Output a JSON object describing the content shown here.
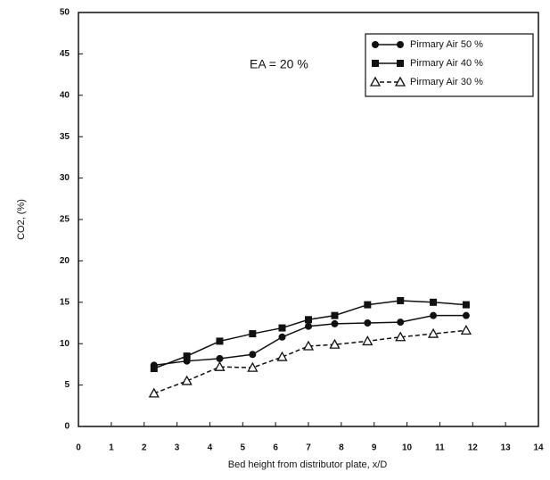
{
  "chart_data": {
    "type": "line",
    "x_label": "Bed height from distributor plate, x/D",
    "y_label": "CO2, (%)",
    "annotation": "EA = 20 %",
    "xlim": [
      0,
      14
    ],
    "ylim": [
      0,
      50
    ],
    "xticks": [
      0,
      1,
      2,
      3,
      4,
      5,
      6,
      7,
      8,
      9,
      10,
      11,
      12,
      13,
      14
    ],
    "yticks": [
      0,
      5,
      10,
      15,
      20,
      25,
      30,
      35,
      40,
      45,
      50
    ],
    "legend_position": "upper right",
    "x": [
      2.3,
      3.3,
      4.3,
      5.3,
      6.2,
      7.0,
      7.8,
      8.8,
      9.8,
      10.8,
      11.8
    ],
    "series": [
      {
        "name": "Pirmary Air 50 %",
        "color": "#111111",
        "marker": "circle",
        "dashed": false,
        "values": [
          7.4,
          7.9,
          8.2,
          8.7,
          10.8,
          12.1,
          12.4,
          12.5,
          12.6,
          13.4,
          13.4
        ]
      },
      {
        "name": "Pirmary Air 40 %",
        "color": "#111111",
        "marker": "square",
        "dashed": false,
        "values": [
          7.0,
          8.5,
          10.3,
          11.2,
          11.9,
          12.9,
          13.4,
          14.7,
          15.2,
          15.0,
          14.7
        ]
      },
      {
        "name": "Pirmary Air 30 %",
        "color": "#111111",
        "marker": "triangle",
        "dashed": true,
        "values": [
          4.0,
          5.5,
          7.2,
          7.1,
          8.4,
          9.7,
          9.9,
          10.3,
          10.8,
          11.2,
          11.6
        ]
      }
    ]
  }
}
